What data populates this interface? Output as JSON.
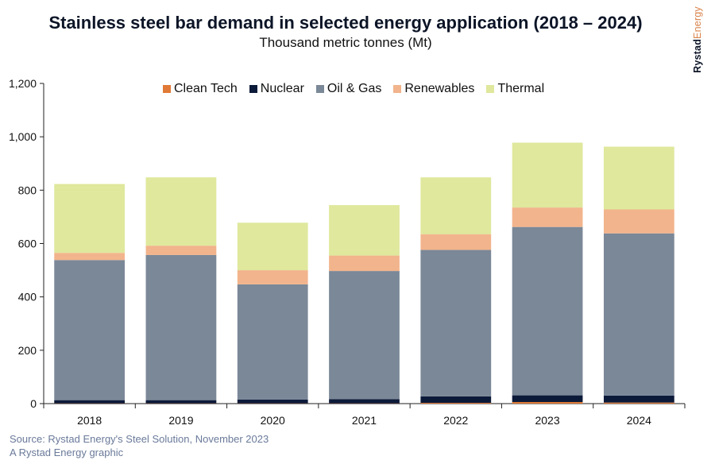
{
  "header": {
    "title": "Stainless steel bar demand in selected energy application (2018 – 2024)",
    "subtitle": "Thousand metric tonnes (Mt)"
  },
  "brand": {
    "part1": "Rystad",
    "part2": "Energy"
  },
  "footer": {
    "source": "Source: Rystad Energy's Steel Solution, November 2023",
    "credit": "A Rystad Energy graphic"
  },
  "chart_data": {
    "type": "bar",
    "stacked": true,
    "title": "Stainless steel bar demand in selected energy application (2018 – 2024)",
    "subtitle": "Thousand metric tonnes (Mt)",
    "xlabel": "",
    "ylabel": "",
    "categories": [
      "2018",
      "2019",
      "2020",
      "2021",
      "2022",
      "2023",
      "2024"
    ],
    "ylim": [
      0,
      1200
    ],
    "yticks": [
      0,
      200,
      400,
      600,
      800,
      1000,
      1200
    ],
    "ytick_labels": [
      "0",
      "200",
      "400",
      "600",
      "800",
      "1,000",
      "1,200"
    ],
    "legend_position": "top",
    "grid": false,
    "series": [
      {
        "name": "Clean Tech",
        "color": "#e07a36",
        "values": [
          1,
          1,
          1,
          1,
          3,
          6,
          4
        ]
      },
      {
        "name": "Nuclear",
        "color": "#0c1a3a",
        "values": [
          12,
          12,
          14,
          16,
          24,
          25,
          26
        ]
      },
      {
        "name": "Oil & Gas",
        "color": "#7b8898",
        "values": [
          525,
          544,
          432,
          480,
          549,
          631,
          608
        ]
      },
      {
        "name": "Renewables",
        "color": "#f2b48c",
        "values": [
          27,
          35,
          53,
          58,
          59,
          73,
          90
        ]
      },
      {
        "name": "Thermal",
        "color": "#dfe89c",
        "values": [
          258,
          256,
          178,
          189,
          213,
          243,
          235
        ]
      }
    ]
  }
}
